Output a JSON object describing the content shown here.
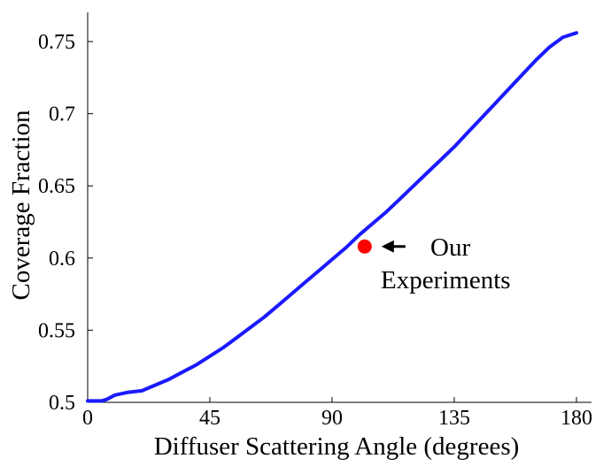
{
  "chart_data": {
    "type": "line",
    "title": "",
    "xlabel": "Diffuser Scattering Angle (degrees)",
    "ylabel": "Coverage Fraction",
    "xlim": [
      0,
      185
    ],
    "ylim": [
      0.5,
      0.76
    ],
    "x_ticks": [
      0,
      45,
      90,
      135,
      180
    ],
    "x_tick_labels": [
      "0",
      "45",
      "90",
      "135",
      "180"
    ],
    "y_ticks": [
      0.5,
      0.55,
      0.6,
      0.65,
      0.7,
      0.75
    ],
    "y_tick_labels": [
      "0.5",
      "0.55",
      "0.6",
      "0.65",
      "0.7",
      "0.75"
    ],
    "grid": false,
    "series": [
      {
        "color": "#1a1aff",
        "x": [
          0,
          5,
          7,
          10,
          15,
          20,
          25,
          30,
          35,
          40,
          45,
          50,
          55,
          60,
          65,
          70,
          75,
          80,
          85,
          90,
          95,
          100,
          105,
          110,
          115,
          120,
          125,
          130,
          135,
          140,
          145,
          150,
          155,
          160,
          165,
          170,
          175,
          180
        ],
        "y": [
          0.501,
          0.501,
          0.502,
          0.505,
          0.507,
          0.508,
          0.512,
          0.516,
          0.521,
          0.526,
          0.532,
          0.538,
          0.545,
          0.552,
          0.559,
          0.567,
          0.575,
          0.583,
          0.591,
          0.599,
          0.607,
          0.616,
          0.624,
          0.632,
          0.641,
          0.65,
          0.659,
          0.668,
          0.677,
          0.687,
          0.697,
          0.707,
          0.717,
          0.727,
          0.737,
          0.746,
          0.753,
          0.756
        ]
      }
    ],
    "highlight_point": {
      "x": 102,
      "y": 0.608,
      "color": "#ff0000"
    },
    "annotation": {
      "lines": [
        "Our",
        "Experiments"
      ],
      "arrow": "left"
    }
  }
}
